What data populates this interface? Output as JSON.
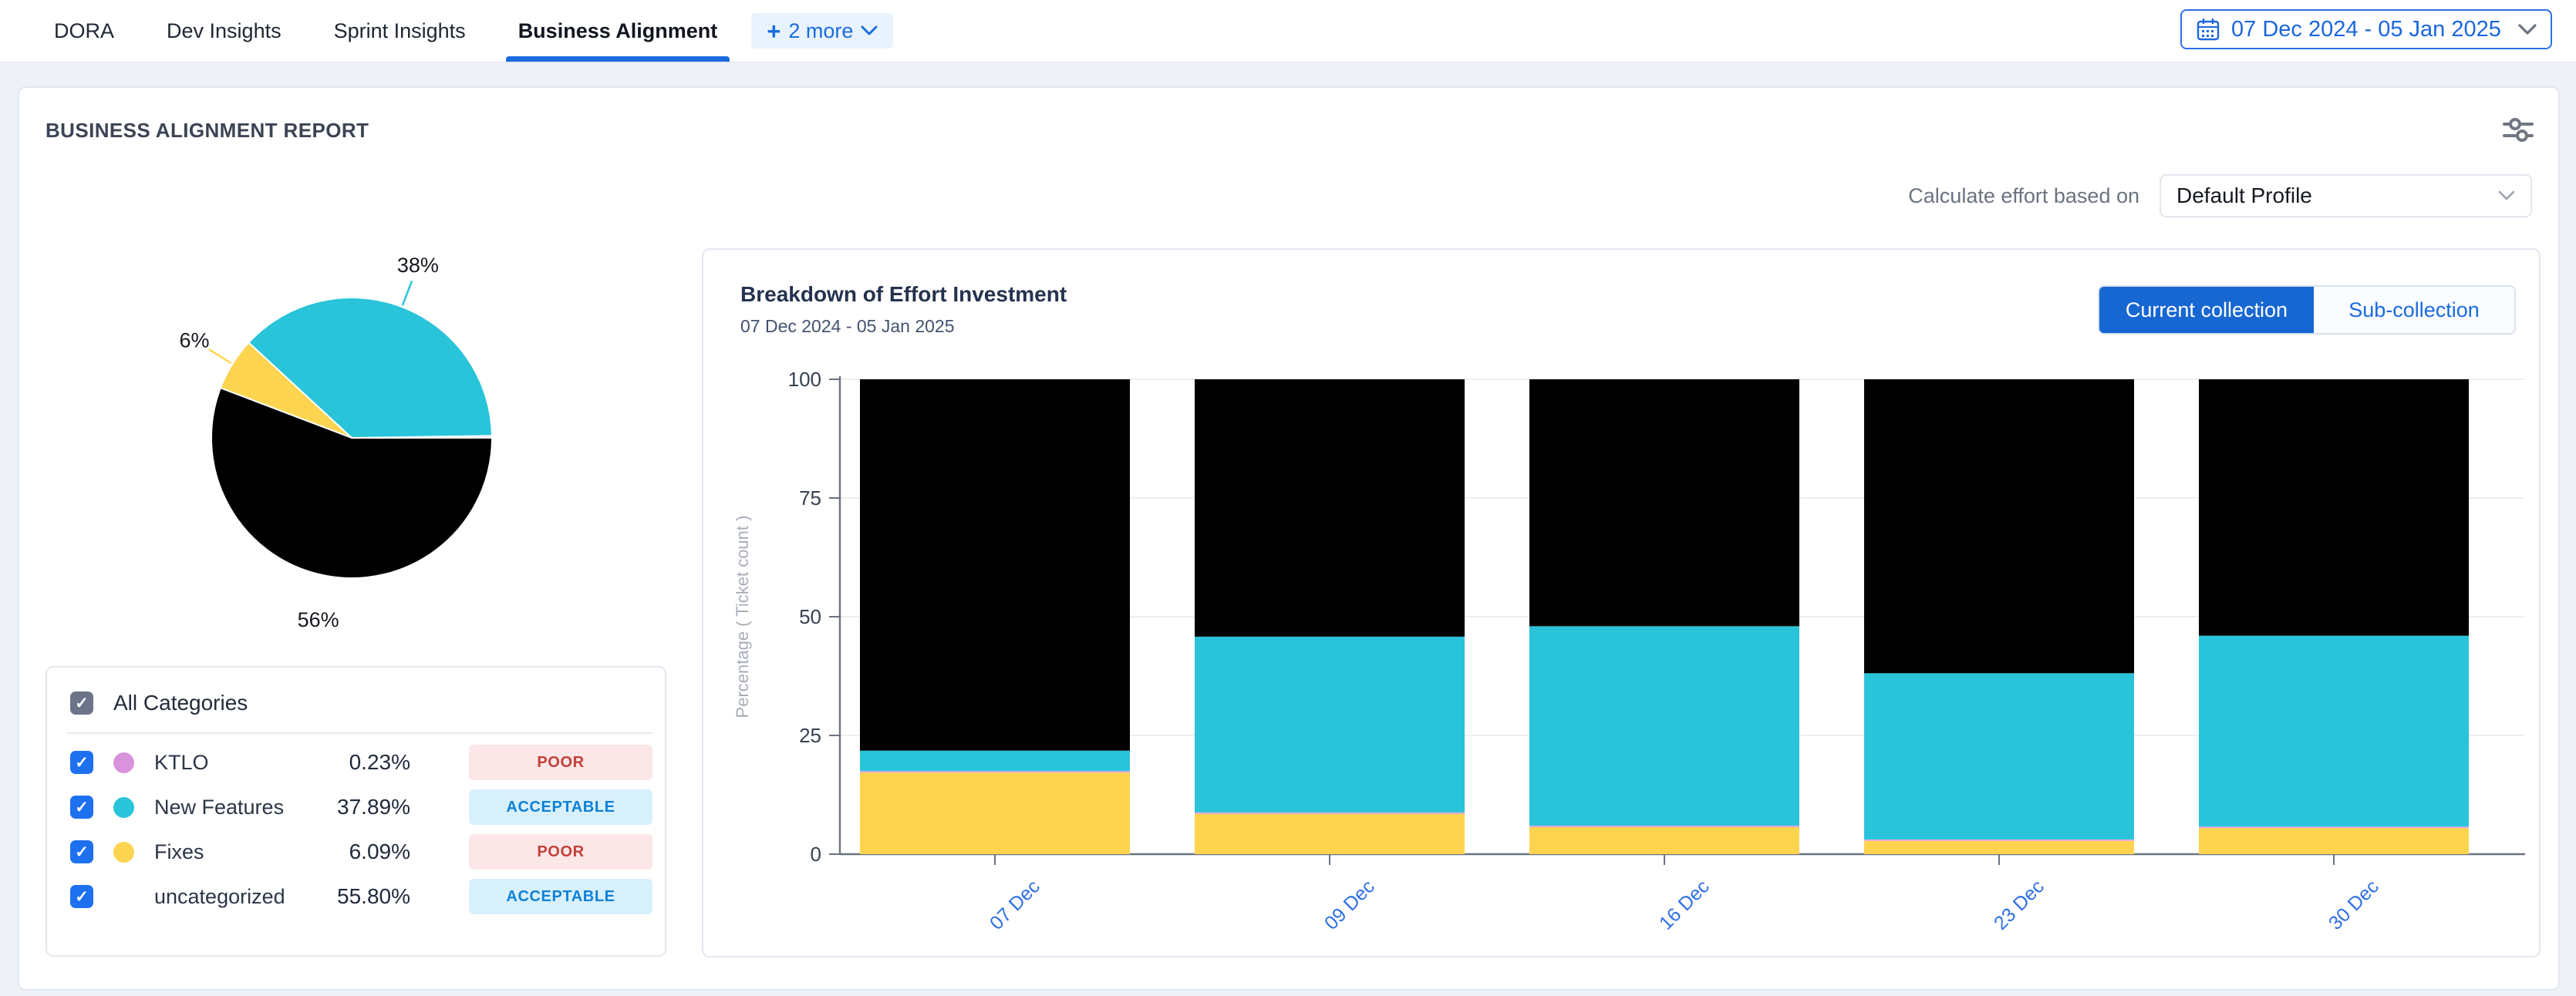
{
  "theme": {
    "accent_blue": "#1a6be0",
    "active_button_bg": "#1767d2",
    "checkbox_blue": "#1d70f0",
    "xaxis_label_blue": "#2e6fe0",
    "status_colors": {
      "POOR": {
        "bg": "#fbe7e7",
        "text": "#c4403a"
      },
      "ACCEPTABLE": {
        "bg": "#d8f0fb",
        "text": "#0f80d7"
      }
    }
  },
  "nav": {
    "tabs": [
      {
        "label": "DORA",
        "active": false
      },
      {
        "label": "Dev Insights",
        "active": false
      },
      {
        "label": "Sprint Insights",
        "active": false
      },
      {
        "label": "Business Alignment",
        "active": true
      }
    ],
    "more_label": "2 more",
    "date_range": "07 Dec 2024 - 05 Jan 2025"
  },
  "report": {
    "title": "BUSINESS ALIGNMENT REPORT",
    "calc_effort_label": "Calculate effort based on",
    "profile_value": "Default Profile"
  },
  "categories": {
    "all_label": "All Categories",
    "items": [
      {
        "name": "KTLO",
        "value": "0.23%",
        "status": "POOR",
        "color": "#d992dc",
        "checked": true
      },
      {
        "name": "New Features",
        "value": "37.89%",
        "status": "ACCEPTABLE",
        "color": "#29c4d9",
        "checked": true
      },
      {
        "name": "Fixes",
        "value": "6.09%",
        "status": "POOR",
        "color": "#fdd44f",
        "checked": true
      },
      {
        "name": "uncategorized",
        "value": "55.80%",
        "status": "ACCEPTABLE",
        "color": null,
        "checked": true
      }
    ]
  },
  "effort_chart": {
    "title": "Breakdown of Effort Investment",
    "subtitle": "07 Dec 2024 - 05 Jan 2025",
    "buttons": [
      {
        "label": "Current collection",
        "active": true
      },
      {
        "label": "Sub-collection",
        "active": false
      }
    ]
  },
  "chart_data": [
    {
      "type": "pie",
      "title": "Category share of effort",
      "start_angle_deg": 0,
      "direction": "counterclockwise",
      "slices": [
        {
          "label": "KTLO",
          "value": 0.23,
          "color": "#d992dc",
          "data_label": null
        },
        {
          "label": "New Features",
          "value": 37.89,
          "color": "#29c4d9",
          "data_label": "38%"
        },
        {
          "label": "Fixes",
          "value": 6.09,
          "color": "#fdd44f",
          "data_label": "6%"
        },
        {
          "label": "uncategorized",
          "value": 55.8,
          "color": "#000000",
          "data_label": "56%"
        }
      ]
    },
    {
      "type": "bar",
      "stacked": true,
      "title": "Breakdown of Effort Investment",
      "categories": [
        "07 Dec",
        "09 Dec",
        "16 Dec",
        "23 Dec",
        "30 Dec"
      ],
      "series": [
        {
          "name": "Fixes",
          "color": "#fdd44f",
          "values": [
            17.2,
            8.5,
            5.7,
            2.8,
            5.5
          ]
        },
        {
          "name": "KTLO",
          "color": "#e79fe0",
          "values": [
            0.3,
            0.3,
            0.3,
            0.3,
            0.3
          ]
        },
        {
          "name": "New Features",
          "color": "#29c4d9",
          "values": [
            4.3,
            37.0,
            42.0,
            35.0,
            40.2
          ]
        },
        {
          "name": "uncategorized",
          "color": "#000000",
          "values": [
            78.2,
            54.2,
            52.0,
            61.9,
            54.0
          ]
        }
      ],
      "ylabel": "Percentage ( Ticket count )",
      "yticks": [
        0,
        25,
        50,
        75,
        100
      ],
      "ylim": [
        0,
        100
      ],
      "grid": true,
      "legend_position": "none"
    }
  ]
}
